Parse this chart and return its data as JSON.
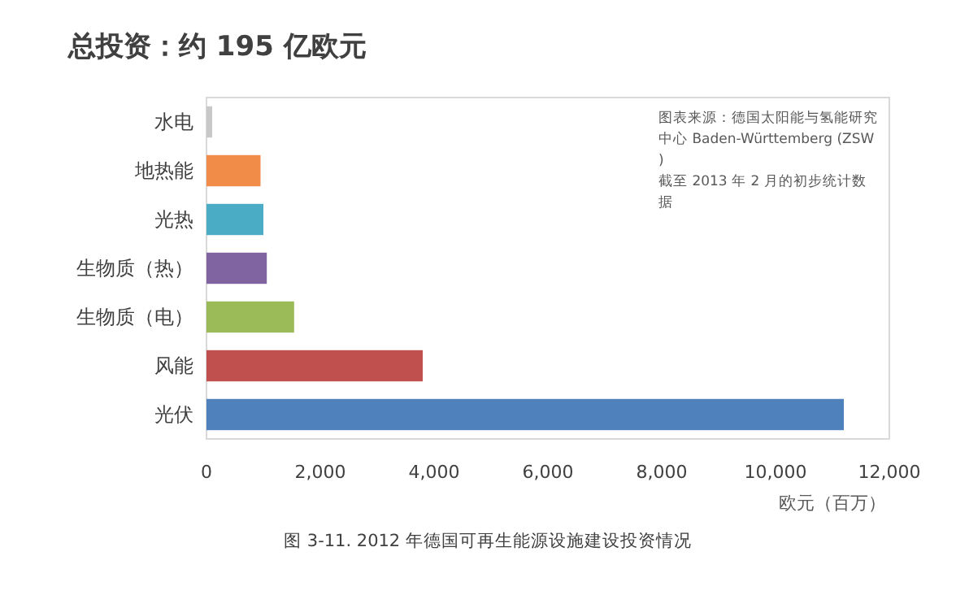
{
  "chart_data": {
    "type": "bar",
    "orientation": "horizontal",
    "title": "总投资：约 195 亿欧元",
    "xlabel": "欧元（百万）",
    "categories": [
      "水电",
      "地热能",
      "光热",
      "生物质（热）",
      "生物质（电）",
      "风能",
      "光伏"
    ],
    "values": [
      100,
      950,
      1000,
      1060,
      1540,
      3800,
      11200
    ],
    "colors": [
      "#c8c8c8",
      "#f08c48",
      "#4bacc6",
      "#8064a2",
      "#9bbb59",
      "#c0504d",
      "#4f81bd"
    ],
    "xlim": [
      0,
      12000
    ],
    "xticks": [
      {
        "value": 0,
        "label": "0"
      },
      {
        "value": 2000,
        "label": "2,000"
      },
      {
        "value": 4000,
        "label": "4,000"
      },
      {
        "value": 6000,
        "label": "6,000"
      },
      {
        "value": 8000,
        "label": "8,000"
      },
      {
        "value": 10000,
        "label": "10,000"
      },
      {
        "value": 12000,
        "label": "12,000"
      }
    ],
    "annotations": [
      "图表来源：德国太阳能与氢能研究中心 Baden-Württemberg (ZSW)",
      "截至 2013 年 2 月的初步统计数据",
      "图 3-11. 2012 年德国可再生能源设施建设投资情况"
    ]
  }
}
